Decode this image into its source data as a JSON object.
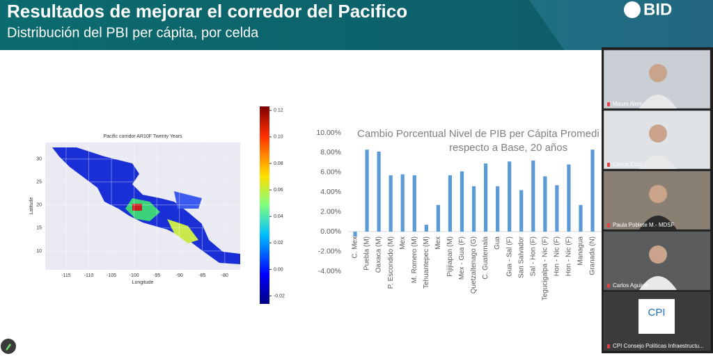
{
  "header": {
    "title": "Resultados de mejorar el corredor del Pacifico",
    "subtitle": "Distribución del PBI per cápita, por celda",
    "logo": "BID"
  },
  "heatmap": {
    "title": "Pacific corridor AR10F Twenty Years",
    "xlabel": "Longitude",
    "ylabel": "Latitude",
    "xlim": [
      -119.6,
      -76.6
    ],
    "xticks": [
      -115,
      -110,
      -105,
      -100,
      -95,
      -90,
      -85,
      -80
    ],
    "ylim": [
      5.9,
      33.6
    ],
    "yticks": [
      10,
      15,
      20,
      25,
      30
    ],
    "colorbar": {
      "lim": [
        -0.026,
        0.123
      ],
      "ticks": [
        {
          "value": -0.02,
          "label": "-0.02"
        },
        {
          "value": 0,
          "label": "0.00"
        },
        0.02,
        0.04,
        0.06,
        0.08,
        {
          "value": 0.1,
          "label": "0.10"
        },
        0.12
      ]
    }
  },
  "chart_data": {
    "type": "bar",
    "title": "Cambio Porcentual Nivel de PIB per Cápita Promedi",
    "subtitle": "respecto a Base, 20 años",
    "categories": [
      "C. Mex",
      "Puebla (M)",
      "Oaxaca (M)",
      "P. Escondido (M)",
      "Mex",
      "M. Romero (M)",
      "Tehuantepec (M)",
      "Mex",
      "Pijijiapan (M)",
      "Mex - Gua (F)",
      "Quetzaltenago (G)",
      "C. Guatemala",
      "Gua",
      "Gua - Sal (F)",
      "San Salvador",
      "Sal - Hon (F)",
      "Tegucigalpa - Nic (F)",
      "Hon - Nic (F)",
      "Hon - Nic (F)",
      "Managua",
      "Granada (N)"
    ],
    "values": [
      -0.5,
      8.3,
      8.1,
      5.7,
      5.8,
      5.7,
      0.7,
      2.7,
      5.7,
      6.1,
      4.6,
      6.9,
      4.6,
      7.1,
      4.2,
      7.2,
      5.6,
      4.7,
      6.8,
      2.7,
      8.3
    ],
    "color": "#5b9bd5",
    "ylim": [
      -4,
      10
    ],
    "yticks": [
      {
        "value": -4,
        "label": "-4.00%"
      },
      {
        "value": -2,
        "label": "-2.00%"
      },
      {
        "value": 0,
        "label": "0.00%"
      },
      {
        "value": 2,
        "label": "2.00%"
      },
      {
        "value": 4,
        "label": "4.00%"
      },
      {
        "value": 6,
        "label": "6.00%"
      },
      {
        "value": 8,
        "label": "8.00%"
      },
      {
        "value": 10,
        "label": "10.00%"
      }
    ],
    "grid": false
  },
  "participants": [
    {
      "name": "Mauro Alem"
    },
    {
      "name": "Carlos Cruz"
    },
    {
      "name": "Paula Poblete M.- MDSF"
    },
    {
      "name": "Carlos Aguirre"
    },
    {
      "name": "CPI Consejo Políticas Infraestructu...",
      "logo": "CPI"
    }
  ]
}
